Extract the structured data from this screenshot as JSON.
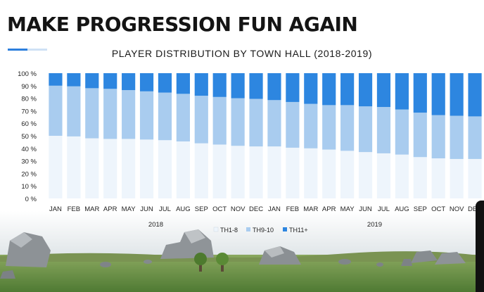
{
  "slide": {
    "title": "MAKE PROGRESSION FUN AGAIN",
    "accent_color": "#2d7fdd"
  },
  "chart_data": {
    "type": "bar",
    "stacked": true,
    "title": "PLAYER DISTRIBUTION BY TOWN HALL (2018-2019)",
    "xlabel": "",
    "ylabel": "",
    "ylim": [
      0,
      100
    ],
    "y_ticks": [
      "0 %",
      "10 %",
      "20 %",
      "30 %",
      "40 %",
      "50 %",
      "60 %",
      "70 %",
      "80 %",
      "90 %",
      "100 %"
    ],
    "categories": [
      "JAN",
      "FEB",
      "MAR",
      "APR",
      "MAY",
      "JUN",
      "JUL",
      "AUG",
      "SEP",
      "OCT",
      "NOV",
      "DEC",
      "JAN",
      "FEB",
      "MAR",
      "APR",
      "MAY",
      "JUN",
      "JUL",
      "AUG",
      "SEP",
      "OCT",
      "NOV",
      "DEC"
    ],
    "year_groups": [
      {
        "label": "2018",
        "start": 0,
        "end": 11
      },
      {
        "label": "2019",
        "start": 12,
        "end": 23
      }
    ],
    "legend_position": "bottom-center",
    "grid": false,
    "series": [
      {
        "name": "TH1-8",
        "color": "#eef5fc",
        "values": [
          50,
          49.5,
          48,
          47.5,
          47.5,
          47,
          46.5,
          45.5,
          44,
          43,
          42,
          41.5,
          41.5,
          40.5,
          40,
          39,
          38,
          37,
          36,
          35,
          33,
          32,
          31.5,
          31.5
        ]
      },
      {
        "name": "TH9-10",
        "color": "#a9ccef",
        "values": [
          40,
          40,
          40,
          40,
          39,
          38.5,
          38,
          38,
          38,
          38,
          38,
          38,
          37,
          36.5,
          35.5,
          35.5,
          36.5,
          36.5,
          37,
          36,
          35.5,
          34.5,
          34.5,
          34
        ]
      },
      {
        "name": "TH11+",
        "color": "#2d86e0",
        "values": [
          10,
          10.5,
          12,
          12.5,
          13.5,
          14.5,
          15.5,
          16.5,
          18,
          19,
          20,
          20.5,
          21.5,
          23,
          24.5,
          25.5,
          25.5,
          26.5,
          27,
          29,
          31.5,
          33.5,
          34,
          34.5
        ]
      }
    ]
  }
}
